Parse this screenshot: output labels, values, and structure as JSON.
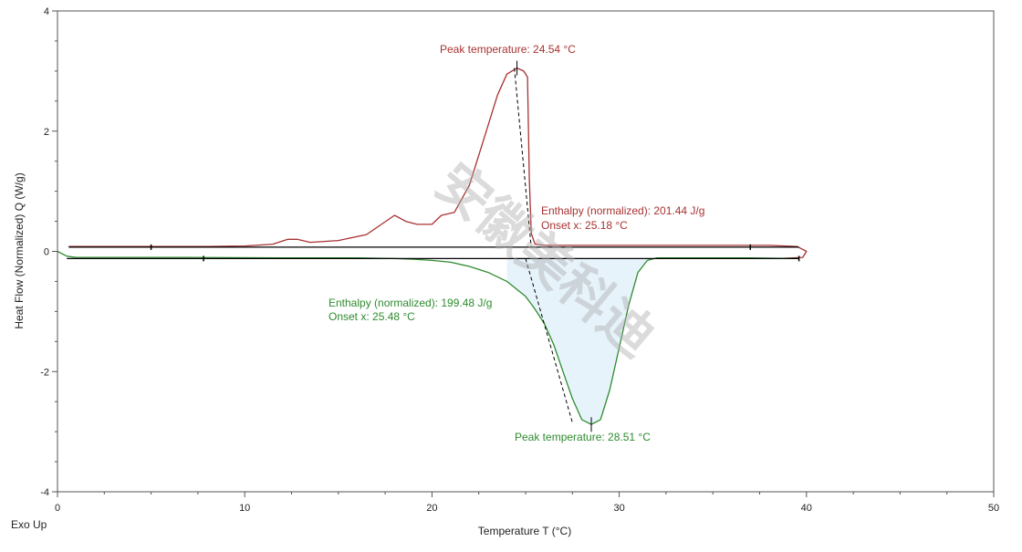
{
  "chart_data": {
    "type": "line",
    "xlabel": "Temperature T (°C)",
    "ylabel": "Heat Flow (Normalized) Q (W/g)",
    "corner_label": "Exo Up",
    "xlim": [
      0,
      50
    ],
    "ylim": [
      -4,
      4
    ],
    "x_ticks": [
      "0",
      "10",
      "20",
      "30",
      "40",
      "50"
    ],
    "y_ticks": [
      "4",
      "2",
      "0",
      "-2",
      "-4"
    ],
    "grid": false,
    "watermark": "安徽美科迪",
    "colors": {
      "red": "#a83232",
      "green": "#2e8b2e",
      "baseline": "#000000",
      "fill": "#e6f3fb"
    },
    "series": [
      {
        "color": "red",
        "x": [
          0.6,
          5,
          8,
          10,
          11.5,
          12.3,
          12.8,
          13.5,
          15,
          16.5,
          17.3,
          18,
          18.6,
          19.2,
          20,
          20.5,
          21.2,
          22,
          22.8,
          23.5,
          24,
          24.54,
          24.9,
          25.1,
          25.2,
          25.3,
          25.5,
          26,
          30,
          35,
          37,
          38,
          39.5,
          40,
          39.8,
          38.5
        ],
        "y": [
          0.08,
          0.08,
          0.08,
          0.09,
          0.12,
          0.2,
          0.2,
          0.15,
          0.18,
          0.28,
          0.45,
          0.6,
          0.5,
          0.45,
          0.45,
          0.6,
          0.65,
          1.1,
          1.9,
          2.6,
          2.95,
          3.05,
          3.0,
          2.9,
          1.2,
          0.3,
          0.12,
          0.1,
          0.1,
          0.1,
          0.1,
          0.1,
          0.08,
          0.0,
          -0.1,
          -0.12
        ]
      },
      {
        "color": "green",
        "x": [
          0,
          0.5,
          1,
          3,
          7,
          12,
          16,
          18,
          19,
          20,
          21,
          22,
          23,
          24,
          25,
          25.48,
          26,
          26.5,
          27,
          27.5,
          28,
          28.51,
          29,
          29.5,
          30,
          30.5,
          31,
          31.5,
          32,
          33,
          35,
          37,
          39.5
        ],
        "y": [
          0.0,
          -0.08,
          -0.1,
          -0.1,
          -0.1,
          -0.11,
          -0.11,
          -0.12,
          -0.13,
          -0.15,
          -0.18,
          -0.25,
          -0.35,
          -0.5,
          -0.75,
          -0.95,
          -1.2,
          -1.55,
          -2.0,
          -2.45,
          -2.8,
          -2.88,
          -2.8,
          -2.3,
          -1.6,
          -0.9,
          -0.35,
          -0.15,
          -0.11,
          -0.11,
          -0.11,
          -0.11,
          -0.12
        ]
      }
    ],
    "baselines": [
      {
        "color": "baseline",
        "x": [
          0.6,
          39.6
        ],
        "y": [
          0.07,
          0.07
        ]
      },
      {
        "color": "baseline",
        "x": [
          0.5,
          39.6
        ],
        "y": [
          -0.12,
          -0.12
        ]
      }
    ],
    "annotations": {
      "red_peak": {
        "text": "Peak temperature: 24.54 °C",
        "x": 24.54,
        "y": 3.05
      },
      "red_enthalpy": "Enthalpy (normalized): 201.44 J/g",
      "red_onset": "Onset x: 25.18 °C",
      "green_enthalpy": "Enthalpy (normalized): 199.48 J/g",
      "green_onset": "Onset x: 25.48 °C",
      "green_peak": {
        "text": "Peak temperature: 28.51 °C",
        "x": 28.51,
        "y": -2.88
      }
    }
  }
}
